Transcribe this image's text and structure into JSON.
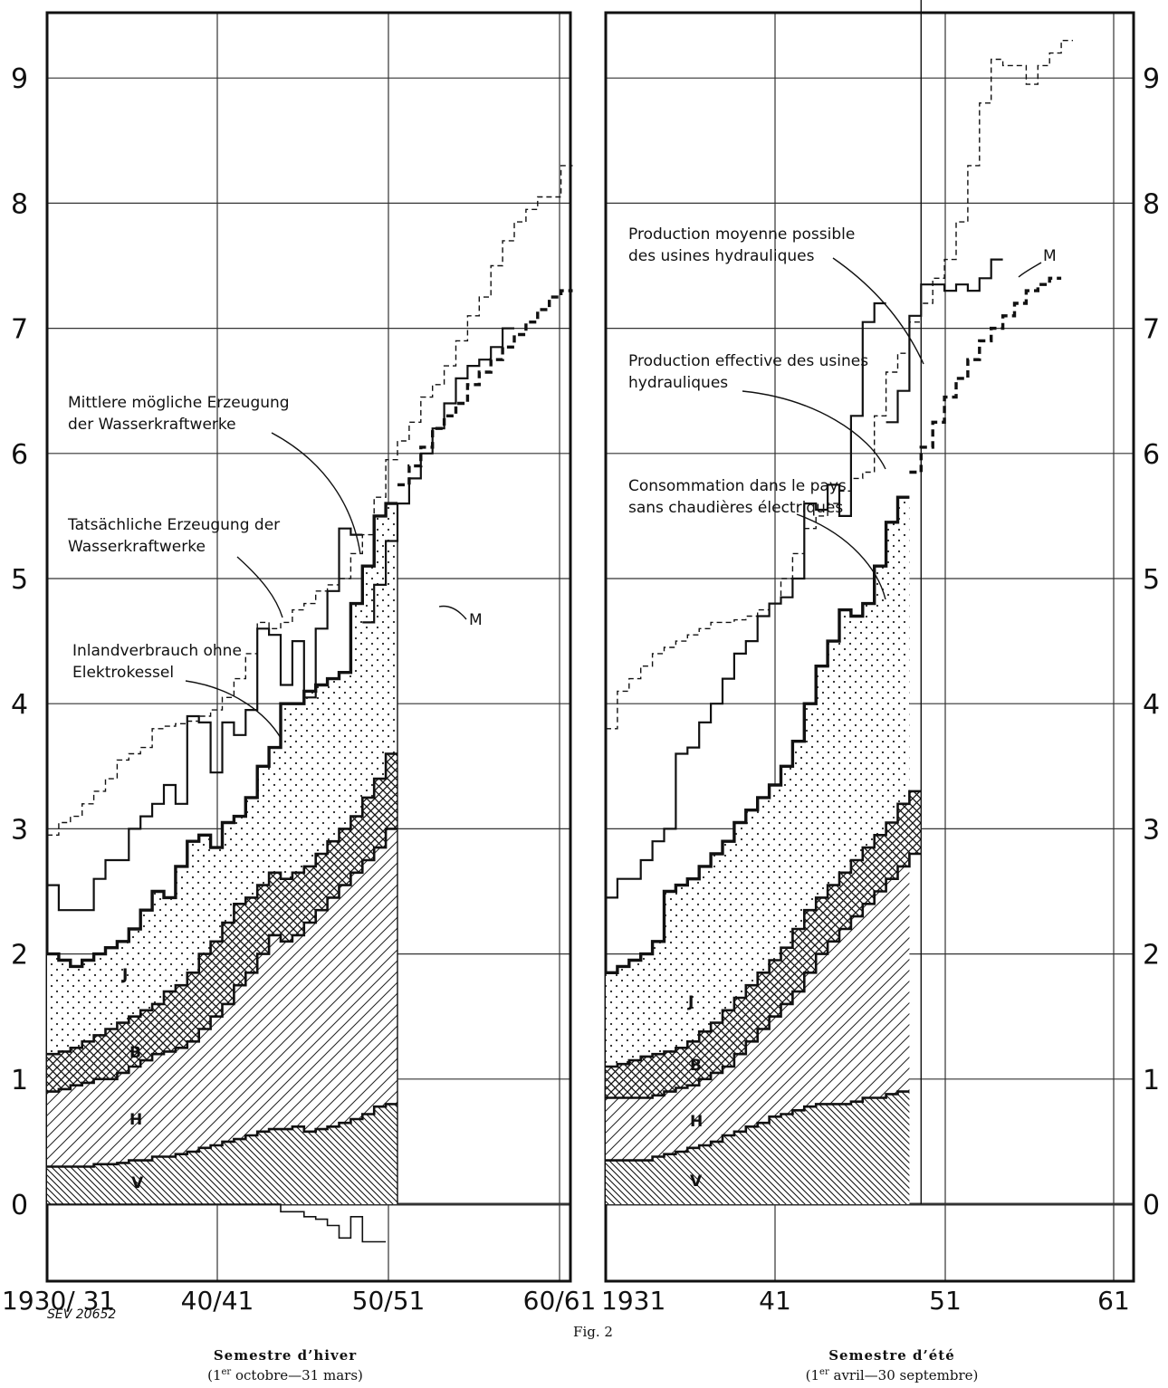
{
  "figure_label": "Fig. 2",
  "figure_code": "SEV 20652",
  "panels": {
    "winter": {
      "caption_title": "Semestre d’hiver",
      "caption_sub_sup": "er",
      "caption_sub_pre": "(1",
      "caption_sub_post": " octobre—31 mars)",
      "x_ticks": [
        "1930/ 31",
        "40/41",
        "50/51",
        "60/61"
      ],
      "annotations": [
        {
          "lines": [
            "Mittlere mögliche Erzeugung",
            "der Wasserkraftwerke"
          ]
        },
        {
          "lines": [
            "Tatsächliche Erzeugung der",
            "Wasserkraftwerke"
          ]
        },
        {
          "lines": [
            "Inlandverbrauch ohne",
            "Elektrokessel"
          ]
        },
        {
          "lines": [
            "M"
          ]
        }
      ],
      "segment_labels": [
        "J",
        "B",
        "H",
        "V"
      ]
    },
    "summer": {
      "caption_title": "Semestre d’été",
      "caption_sub_sup": "er",
      "caption_sub_pre": "(1",
      "caption_sub_post": " avril—30 septembre)",
      "x_ticks": [
        "1931",
        "41",
        "51",
        "61"
      ],
      "annotations": [
        {
          "lines": [
            "Production moyenne possible",
            "des usines hydrauliques"
          ]
        },
        {
          "lines": [
            "Production effective des usines",
            "hydrauliques"
          ]
        },
        {
          "lines": [
            "Consommation dans le pays",
            "sans chaudières électriques"
          ]
        },
        {
          "lines": [
            "M"
          ]
        }
      ],
      "segment_labels": [
        "J",
        "B",
        "H",
        "V"
      ]
    }
  },
  "y_ticks": [
    "0",
    "1",
    "2",
    "3",
    "4",
    "5",
    "6",
    "7",
    "8",
    "9"
  ],
  "chart_data": [
    {
      "type": "line",
      "panel": "winter",
      "ylim": [
        -0.5,
        9.5
      ],
      "x_start": 1930,
      "step_width_years": 1,
      "grid": true,
      "series": [
        {
          "key": "possible",
          "values": [
            2.95,
            3.05,
            3.1,
            3.2,
            3.3,
            3.4,
            3.55,
            3.6,
            3.65,
            3.8,
            3.82,
            3.84,
            3.86,
            3.9,
            3.95,
            4.05,
            4.2,
            4.4,
            4.65,
            4.6,
            4.65,
            4.75,
            4.8,
            4.9,
            4.95,
            5.0,
            5.2,
            5.35,
            5.65,
            5.95,
            6.1,
            6.25,
            6.45,
            6.55,
            6.7,
            6.9,
            7.1,
            7.25,
            7.5,
            7.7,
            7.85,
            7.95,
            8.05,
            8.05,
            8.3
          ],
          "projection_from_index": 22
        },
        {
          "key": "effective",
          "values": [
            2.55,
            2.35,
            2.35,
            2.35,
            2.6,
            2.75,
            2.75,
            3.0,
            3.1,
            3.2,
            3.35,
            3.2,
            3.9,
            3.85,
            3.45,
            3.85,
            3.75,
            3.95,
            4.6,
            4.55,
            4.15,
            4.5,
            4.05,
            4.6,
            4.9,
            5.4,
            5.35
          ],
          "continuation": [
            4.65,
            4.95,
            5.3,
            5.6,
            5.8,
            6.0,
            6.2,
            6.4,
            6.6,
            6.7,
            6.75,
            6.85,
            7.0
          ]
        },
        {
          "key": "consumption",
          "values": [
            2.0,
            1.95,
            1.9,
            1.95,
            2.0,
            2.05,
            2.1,
            2.2,
            2.35,
            2.5,
            2.45,
            2.7,
            2.9,
            2.95,
            2.85,
            3.05,
            3.1,
            3.25,
            3.5,
            3.65,
            4.0,
            4.0,
            4.1,
            4.15,
            4.2,
            4.25,
            4.8,
            5.1,
            5.5,
            5.6
          ],
          "projection": [
            5.75,
            5.9,
            6.05,
            6.2,
            6.3,
            6.4,
            6.55,
            6.65,
            6.75,
            6.85,
            6.95,
            7.05,
            7.15,
            7.25,
            7.3
          ]
        },
        {
          "key": "B_top",
          "values": [
            1.2,
            1.22,
            1.25,
            1.3,
            1.35,
            1.4,
            1.45,
            1.5,
            1.55,
            1.6,
            1.7,
            1.75,
            1.85,
            2.0,
            2.1,
            2.25,
            2.4,
            2.45,
            2.55,
            2.65,
            2.6,
            2.65,
            2.7,
            2.8,
            2.9,
            3.0,
            3.1,
            3.25,
            3.4,
            3.6
          ]
        },
        {
          "key": "H_top",
          "values": [
            0.9,
            0.92,
            0.95,
            0.97,
            1.0,
            1.0,
            1.05,
            1.1,
            1.15,
            1.2,
            1.22,
            1.25,
            1.3,
            1.4,
            1.5,
            1.6,
            1.75,
            1.85,
            2.0,
            2.15,
            2.1,
            2.15,
            2.25,
            2.35,
            2.45,
            2.55,
            2.65,
            2.75,
            2.85,
            3.0
          ]
        },
        {
          "key": "V_top",
          "values": [
            0.3,
            0.3,
            0.3,
            0.3,
            0.32,
            0.32,
            0.33,
            0.35,
            0.35,
            0.38,
            0.38,
            0.4,
            0.42,
            0.45,
            0.47,
            0.5,
            0.52,
            0.55,
            0.58,
            0.6,
            0.6,
            0.62,
            0.58,
            0.6,
            0.62,
            0.65,
            0.68,
            0.72,
            0.78,
            0.8
          ]
        },
        {
          "key": "below_zero",
          "values": [
            0,
            0,
            0,
            0,
            0,
            0,
            0,
            0,
            0,
            0,
            0,
            0,
            0,
            0,
            0,
            0,
            0,
            0,
            0,
            0,
            -0.06,
            -0.06,
            -0.1,
            -0.12,
            -0.17,
            -0.27,
            -0.1,
            -0.3,
            -0.3
          ]
        }
      ]
    },
    {
      "type": "line",
      "panel": "summer",
      "ylim": [
        -0.5,
        9.5
      ],
      "x_start": 1931,
      "step_width_years": 1,
      "grid": true,
      "series": [
        {
          "key": "possible",
          "values": [
            3.8,
            4.1,
            4.2,
            4.3,
            4.4,
            4.45,
            4.5,
            4.55,
            4.6,
            4.65,
            4.65,
            4.67,
            4.7,
            4.75,
            4.8,
            5.0,
            5.2,
            5.4,
            5.5,
            5.6,
            5.7,
            5.8,
            5.85,
            6.3,
            6.65,
            6.8,
            7.05,
            7.2,
            7.4,
            7.55,
            7.85,
            8.3,
            8.8,
            9.15,
            9.1,
            9.1,
            8.95,
            9.1,
            9.2,
            9.3
          ],
          "projection_from_index": 23
        },
        {
          "key": "effective",
          "values": [
            2.45,
            2.6,
            2.6,
            2.75,
            2.9,
            3.0,
            3.6,
            3.65,
            3.85,
            4.0,
            4.2,
            4.4,
            4.5,
            4.7,
            4.8,
            4.85,
            5.0,
            5.6,
            5.55,
            5.75,
            5.5,
            6.3,
            7.05,
            7.2
          ],
          "continuation": [
            6.25,
            6.5,
            7.1,
            7.35,
            7.35,
            7.3,
            7.35,
            7.3,
            7.4,
            7.55
          ]
        },
        {
          "key": "consumption",
          "values": [
            1.85,
            1.9,
            1.95,
            2.0,
            2.1,
            2.5,
            2.55,
            2.6,
            2.7,
            2.8,
            2.9,
            3.05,
            3.15,
            3.25,
            3.35,
            3.5,
            3.7,
            4.0,
            4.3,
            4.5,
            4.75,
            4.7,
            4.8,
            5.1,
            5.45,
            5.65
          ],
          "projection": [
            5.85,
            6.05,
            6.25,
            6.45,
            6.6,
            6.75,
            6.9,
            7.0,
            7.1,
            7.2,
            7.3,
            7.35,
            7.4
          ]
        },
        {
          "key": "B_top",
          "values": [
            1.1,
            1.12,
            1.15,
            1.18,
            1.2,
            1.22,
            1.25,
            1.3,
            1.38,
            1.45,
            1.55,
            1.65,
            1.75,
            1.85,
            1.95,
            2.05,
            2.2,
            2.35,
            2.45,
            2.55,
            2.65,
            2.75,
            2.85,
            2.95,
            3.05,
            3.2,
            3.3
          ]
        },
        {
          "key": "H_top",
          "values": [
            0.85,
            0.85,
            0.85,
            0.85,
            0.87,
            0.9,
            0.93,
            0.95,
            1.0,
            1.05,
            1.1,
            1.2,
            1.3,
            1.4,
            1.5,
            1.6,
            1.7,
            1.85,
            2.0,
            2.1,
            2.2,
            2.3,
            2.4,
            2.5,
            2.6,
            2.7,
            2.8
          ]
        },
        {
          "key": "V_top",
          "values": [
            0.35,
            0.35,
            0.35,
            0.35,
            0.38,
            0.4,
            0.42,
            0.45,
            0.47,
            0.5,
            0.55,
            0.58,
            0.62,
            0.65,
            0.7,
            0.72,
            0.75,
            0.78,
            0.8,
            0.8,
            0.8,
            0.82,
            0.85,
            0.85,
            0.88,
            0.9
          ]
        }
      ]
    }
  ]
}
